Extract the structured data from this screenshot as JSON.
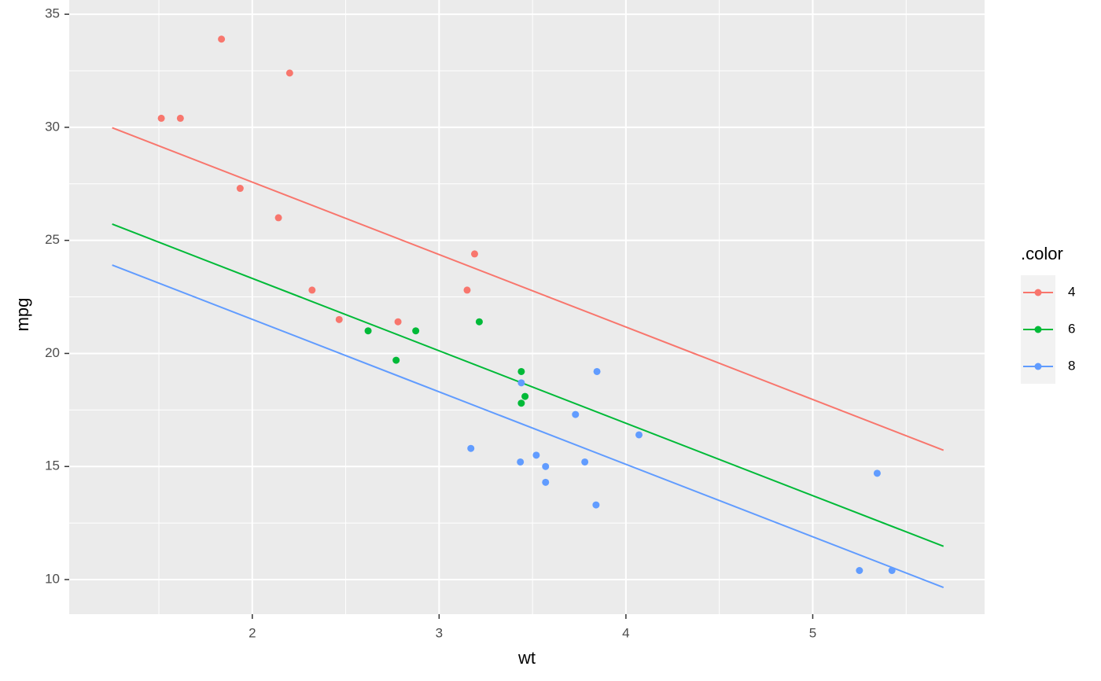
{
  "chart_data": {
    "type": "scatter",
    "x_label": "wt",
    "y_label": "mpg",
    "legend_title": ".color",
    "xlim": [
      1.02,
      5.92
    ],
    "ylim": [
      8.47,
      35.63
    ],
    "xticks": [
      2,
      3,
      4,
      5
    ],
    "yticks": [
      10,
      15,
      20,
      25,
      30,
      35
    ],
    "grid": true,
    "legend": "right",
    "series": [
      {
        "name": "4",
        "color": "#f8766d",
        "x": [
          2.32,
          3.19,
          3.15,
          2.2,
          1.615,
          1.835,
          2.465,
          1.935,
          2.14,
          1.513,
          2.78
        ],
        "values": [
          22.8,
          24.4,
          22.8,
          32.4,
          30.4,
          33.9,
          21.5,
          27.3,
          26.0,
          30.4,
          21.4
        ],
        "fit_x": [
          1.25,
          5.7
        ],
        "fit_values": [
          29.98,
          15.72
        ]
      },
      {
        "name": "6",
        "color": "#00ba38",
        "x": [
          2.62,
          2.875,
          3.215,
          3.46,
          3.44,
          3.44,
          2.77
        ],
        "values": [
          21.0,
          21.0,
          21.4,
          18.1,
          19.2,
          17.8,
          19.7
        ],
        "fit_x": [
          1.25,
          5.7
        ],
        "fit_values": [
          25.72,
          11.47
        ]
      },
      {
        "name": "8",
        "color": "#619cff",
        "x": [
          3.44,
          3.57,
          4.07,
          3.73,
          3.78,
          5.25,
          5.424,
          5.345,
          3.52,
          3.435,
          3.84,
          3.845,
          3.17,
          3.57
        ],
        "values": [
          18.7,
          14.3,
          16.4,
          17.3,
          15.2,
          10.4,
          10.4,
          14.7,
          15.5,
          15.2,
          13.3,
          19.2,
          15.8,
          15.0
        ],
        "fit_x": [
          1.25,
          5.7
        ],
        "fit_values": [
          23.91,
          9.65
        ]
      }
    ]
  }
}
